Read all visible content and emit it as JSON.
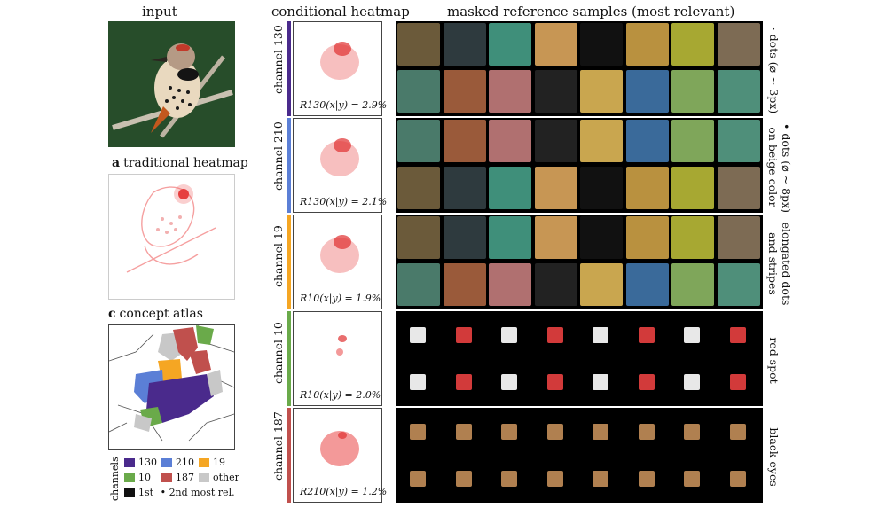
{
  "headers": {
    "input": "input",
    "conditional": "conditional heatmap",
    "masked": "masked reference samples (most relevant)"
  },
  "panels": {
    "a_letter": "a",
    "a_title": "traditional heatmap",
    "c_letter": "c",
    "c_title": "concept atlas"
  },
  "rows": [
    {
      "channel": "channel 130",
      "color": "#4a2a8c",
      "relevance": "R130(x|y) = 2.9%",
      "desc_line1": "· dots (⌀ ~ 3px)",
      "desc_line2": ""
    },
    {
      "channel": "channel 210",
      "color": "#5b7fd6",
      "relevance": "R130(x|y) = 2.1%",
      "desc_line1": "• dots (⌀ ~ 8px)",
      "desc_line2": "on beige color"
    },
    {
      "channel": "channel 19",
      "color": "#f5a623",
      "relevance": "R10(x|y) = 1.9%",
      "desc_line1": "elongated dots",
      "desc_line2": "and stripes"
    },
    {
      "channel": "channel 10",
      "color": "#6aaa4a",
      "relevance": "R10(x|y) = 2.0%",
      "desc_line1": "red spot",
      "desc_line2": ""
    },
    {
      "channel": "channel 187",
      "color": "#c0504d",
      "relevance": "R210(x|y) = 1.2%",
      "desc_line1": "black eyes",
      "desc_line2": ""
    }
  ],
  "legend": {
    "axis_label": "channels",
    "items": [
      {
        "label": "130",
        "color": "#4a2a8c"
      },
      {
        "label": "210",
        "color": "#5b7fd6"
      },
      {
        "label": "19",
        "color": "#f5a623"
      },
      {
        "label": "10",
        "color": "#6aaa4a"
      },
      {
        "label": "187",
        "color": "#c0504d"
      },
      {
        "label": "other",
        "color": "#c8c8c8"
      }
    ],
    "first_label": "1st",
    "second_label": "• 2nd most rel."
  }
}
